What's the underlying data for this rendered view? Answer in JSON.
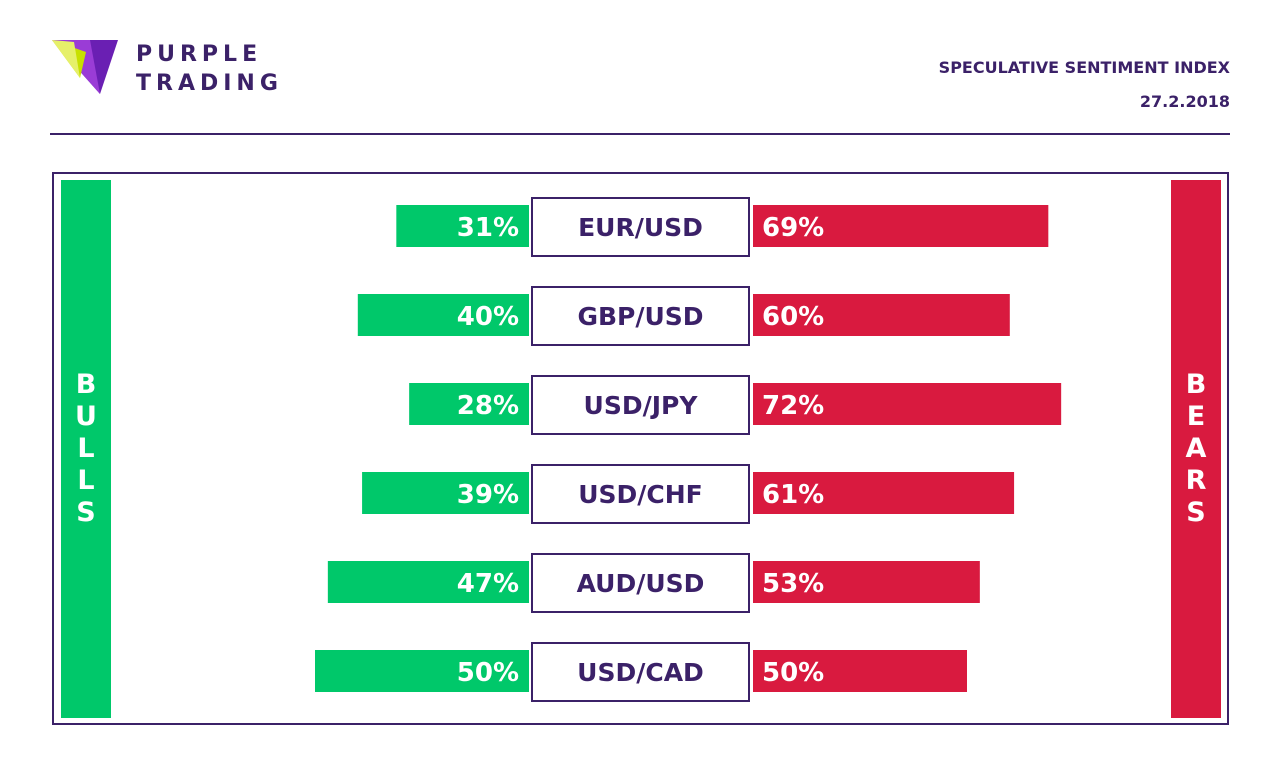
{
  "brand": {
    "line1": "PURPLE",
    "line2": "TRADING",
    "colors": {
      "purple": "#3b2168",
      "lime": "#c8e000",
      "violet": "#8a2be2"
    },
    "logo_icon": "purple-trading-logo-icon"
  },
  "header": {
    "title": "SPECULATIVE SENTIMENT INDEX",
    "date": "27.2.2018"
  },
  "bulls_label": "BULLS",
  "bears_label": "BEARS",
  "colors": {
    "bulls": "#00c86a",
    "bears": "#d91a3f",
    "frame": "#3b2168"
  },
  "chart_data": {
    "type": "bar",
    "categories": [
      "EUR/USD",
      "GBP/USD",
      "USD/JPY",
      "USD/CHF",
      "AUD/USD",
      "USD/CAD"
    ],
    "series": [
      {
        "name": "BULLS",
        "values": [
          31,
          40,
          28,
          39,
          47,
          50
        ]
      },
      {
        "name": "BEARS",
        "values": [
          69,
          60,
          72,
          61,
          53,
          50
        ]
      }
    ],
    "value_suffix": "%"
  }
}
